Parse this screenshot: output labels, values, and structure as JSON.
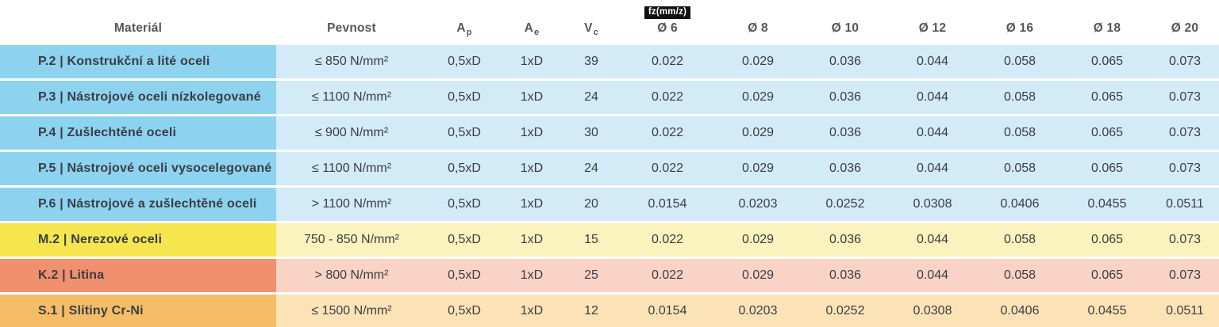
{
  "chart_data": {
    "type": "table",
    "title": "Cutting data table (milling) — material groups with feed per tooth by cutter diameter",
    "headers": {
      "material": "Materiál",
      "pevnost": "Pevnost",
      "ap": {
        "label": "A",
        "sub": "p"
      },
      "ae": {
        "label": "A",
        "sub": "e"
      },
      "vc": {
        "label": "V",
        "sub": "c"
      },
      "fz_badge": "fz(mm/z)",
      "diameters": [
        "Ø 6",
        "Ø 8",
        "Ø 10",
        "Ø 12",
        "Ø 16",
        "Ø 18",
        "Ø 20"
      ]
    },
    "rows": [
      {
        "material": "P.2 | Konstrukční a lité oceli",
        "pevnost": "≤ 850 N/mm²",
        "ap": "0,5xD",
        "ae": "1xD",
        "vc": "39",
        "fz": [
          "0.022",
          "0.029",
          "0.036",
          "0.044",
          "0.058",
          "0.065",
          "0.073"
        ],
        "theme": "blue"
      },
      {
        "material": "P.3 | Nástrojové oceli nízkolegované",
        "pevnost": "≤ 1100 N/mm²",
        "ap": "0,5xD",
        "ae": "1xD",
        "vc": "24",
        "fz": [
          "0.022",
          "0.029",
          "0.036",
          "0.044",
          "0.058",
          "0.065",
          "0.073"
        ],
        "theme": "blue"
      },
      {
        "material": "P.4 | Zušlechtěné oceli",
        "pevnost": "≤ 900 N/mm²",
        "ap": "0,5xD",
        "ae": "1xD",
        "vc": "30",
        "fz": [
          "0.022",
          "0.029",
          "0.036",
          "0.044",
          "0.058",
          "0.065",
          "0.073"
        ],
        "theme": "blue"
      },
      {
        "material": "P.5 | Nástrojové oceli vysocelegované",
        "pevnost": "≤ 1100 N/mm²",
        "ap": "0,5xD",
        "ae": "1xD",
        "vc": "24",
        "fz": [
          "0.022",
          "0.029",
          "0.036",
          "0.044",
          "0.058",
          "0.065",
          "0.073"
        ],
        "theme": "blue"
      },
      {
        "material": "P.6 | Nástrojové a zušlechtěné oceli",
        "pevnost": "> 1100 N/mm²",
        "ap": "0,5xD",
        "ae": "1xD",
        "vc": "20",
        "fz": [
          "0.0154",
          "0.0203",
          "0.0252",
          "0.0308",
          "0.0406",
          "0.0455",
          "0.0511"
        ],
        "theme": "blue"
      },
      {
        "material": "M.2 | Nerezové oceli",
        "pevnost": "750 - 850 N/mm²",
        "ap": "0,5xD",
        "ae": "1xD",
        "vc": "15",
        "fz": [
          "0.022",
          "0.029",
          "0.036",
          "0.044",
          "0.058",
          "0.065",
          "0.073"
        ],
        "theme": "yellow"
      },
      {
        "material": "K.2 | Litina",
        "pevnost": "> 800 N/mm²",
        "ap": "0,5xD",
        "ae": "1xD",
        "vc": "25",
        "fz": [
          "0.022",
          "0.029",
          "0.036",
          "0.044",
          "0.058",
          "0.065",
          "0.073"
        ],
        "theme": "salmon"
      },
      {
        "material": "S.1 | Slitiny Cr-Ni",
        "pevnost": "≤ 1500 N/mm²",
        "ap": "0,5xD",
        "ae": "1xD",
        "vc": "12",
        "fz": [
          "0.0154",
          "0.0203",
          "0.0252",
          "0.0308",
          "0.0406",
          "0.0455",
          "0.0511"
        ],
        "theme": "orange"
      }
    ],
    "colors": {
      "steel_material_bg": "#8DD2EF",
      "steel_body_bg": "#D3EAF7",
      "stainless_material_bg": "#F5E54E",
      "stainless_body_bg": "#FBF3BD",
      "cast_iron_material_bg": "#F0906E",
      "cast_iron_body_bg": "#F9D3C5",
      "cr_ni_material_bg": "#F5BD65",
      "cr_ni_body_bg": "#FCE3B6",
      "fz_badge_bg": "#111111",
      "fz_badge_text": "#FFFFFF",
      "header_text": "#54565B",
      "material_text": "#26282D",
      "value_text": "#3A3D44"
    }
  }
}
